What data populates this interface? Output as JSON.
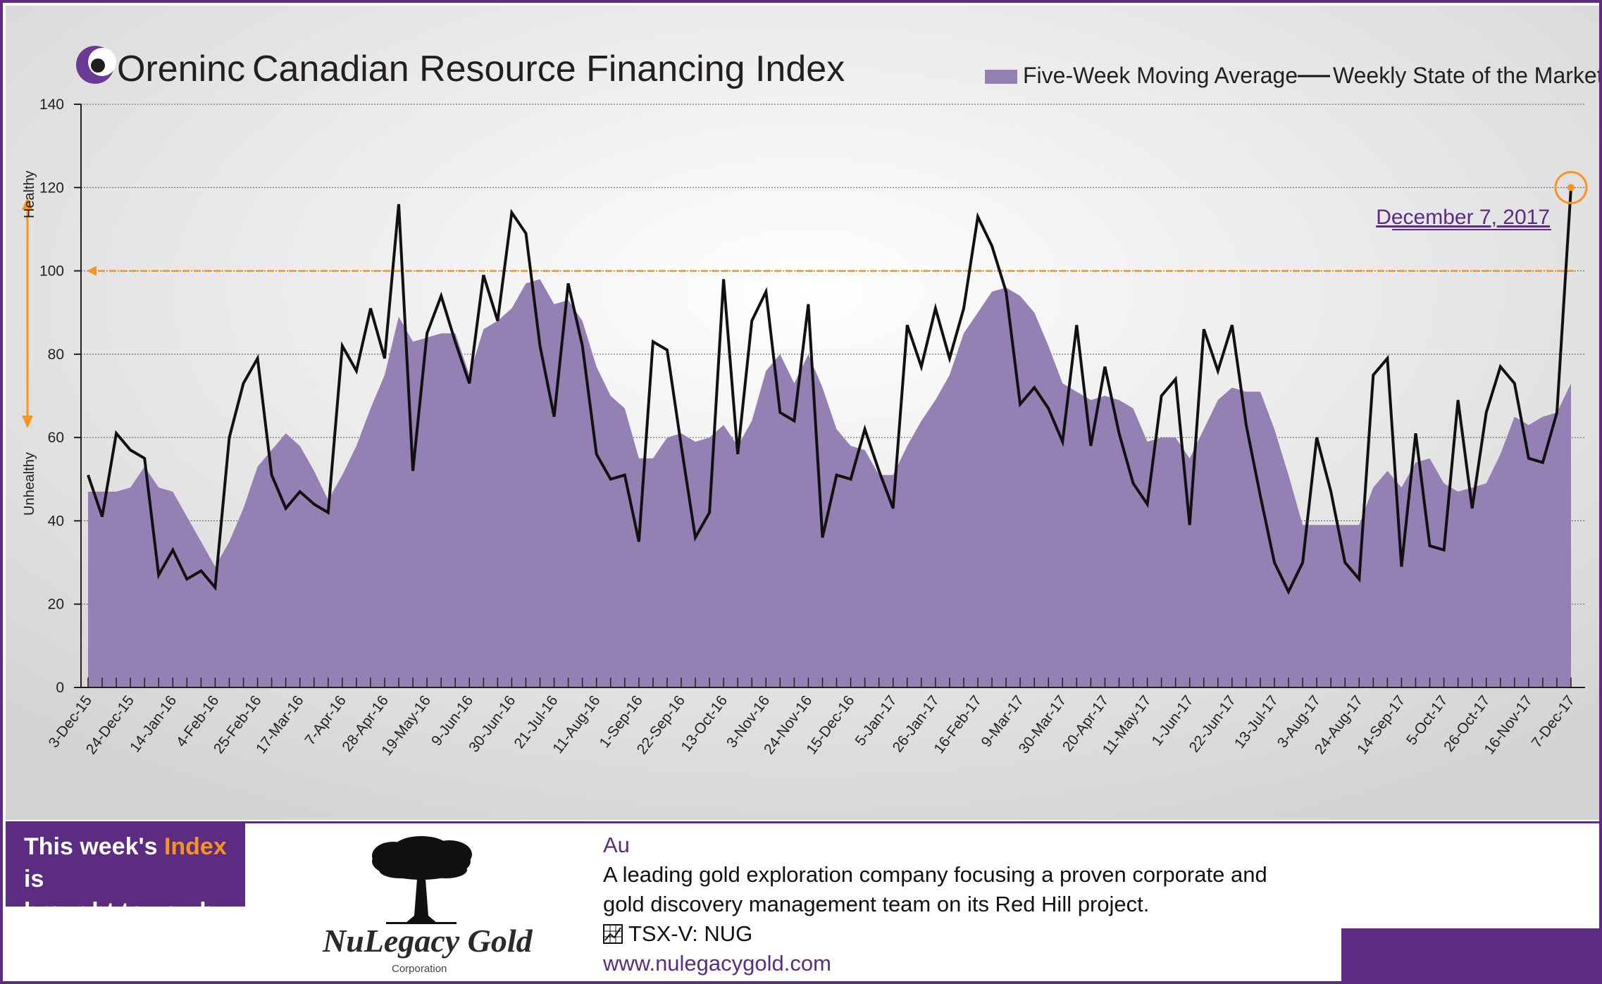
{
  "header": {
    "brand": "Oreninc",
    "title": "Canadian Resource Financing Index",
    "legend": [
      {
        "label": "Five-Week Moving Average",
        "kind": "area"
      },
      {
        "label": "Weekly State of the Market",
        "kind": "line"
      }
    ]
  },
  "annotations": {
    "healthy": "Healthy",
    "unhealthy": "Unhealthy",
    "latest_label": "December 7, 2017",
    "threshold": 100
  },
  "colors": {
    "area": "#9580b3",
    "line": "#111111",
    "accent": "#f7931e",
    "brand_purple": "#5b2c82"
  },
  "chart_data": {
    "type": "area",
    "title": "Canadian Resource Financing Index",
    "xlabel": "",
    "ylabel": "",
    "ylim": [
      0,
      140
    ],
    "yticks": [
      0,
      20,
      40,
      60,
      80,
      100,
      120,
      140
    ],
    "grid": true,
    "legend_position": "top-right",
    "x_tick_labels": [
      "3-Dec-15",
      "24-Dec-15",
      "14-Jan-16",
      "4-Feb-16",
      "25-Feb-16",
      "17-Mar-16",
      "7-Apr-16",
      "28-Apr-16",
      "19-May-16",
      "9-Jun-16",
      "30-Jun-16",
      "21-Jul-16",
      "11-Aug-16",
      "1-Sep-16",
      "22-Sep-16",
      "13-Oct-16",
      "3-Nov-16",
      "24-Nov-16",
      "15-Dec-16",
      "5-Jan-17",
      "26-Jan-17",
      "16-Feb-17",
      "9-Mar-17",
      "30-Mar-17",
      "20-Apr-17",
      "11-May-17",
      "1-Jun-17",
      "22-Jun-17",
      "13-Jul-17",
      "3-Aug-17",
      "24-Aug-17",
      "14-Sep-17",
      "5-Oct-17",
      "26-Oct-17",
      "16-Nov-17",
      "7-Dec-17"
    ],
    "series": [
      {
        "name": "Five-Week Moving Average",
        "values": [
          47,
          47,
          47,
          48,
          53,
          48,
          47,
          41,
          35,
          29,
          35,
          43,
          53,
          57,
          61,
          58,
          52,
          45,
          51,
          58,
          67,
          75,
          89,
          83,
          84,
          85,
          85,
          75,
          86,
          88,
          91,
          97,
          98,
          92,
          93,
          88,
          77,
          70,
          67,
          55,
          55,
          60,
          61,
          59,
          60,
          63,
          58,
          64,
          76,
          80,
          73,
          80,
          72,
          62,
          58,
          57,
          51,
          51,
          58,
          64,
          69,
          75,
          85,
          90,
          95,
          96,
          94,
          90,
          82,
          73,
          71,
          69,
          70,
          69,
          67,
          59,
          60,
          60,
          55,
          62,
          69,
          72,
          71,
          71,
          62,
          51,
          39,
          39,
          39,
          39,
          39,
          48,
          52,
          48,
          54,
          55,
          49,
          47,
          48,
          49,
          56,
          65,
          63,
          65,
          66,
          73
        ]
      },
      {
        "name": "Weekly State of the Market",
        "values": [
          51,
          41,
          61,
          57,
          55,
          27,
          33,
          26,
          28,
          24,
          60,
          73,
          79,
          51,
          43,
          47,
          44,
          42,
          82,
          76,
          91,
          79,
          116,
          52,
          85,
          94,
          83,
          73,
          99,
          88,
          114,
          109,
          82,
          65,
          97,
          82,
          56,
          50,
          51,
          35,
          83,
          81,
          58,
          36,
          42,
          98,
          56,
          88,
          95,
          66,
          64,
          92,
          36,
          51,
          50,
          62,
          52,
          43,
          87,
          77,
          91,
          79,
          91,
          113,
          106,
          95,
          68,
          72,
          67,
          59,
          87,
          58,
          77,
          61,
          49,
          44,
          70,
          74,
          39,
          86,
          76,
          87,
          63,
          46,
          30,
          23,
          30,
          60,
          47,
          30,
          26,
          75,
          79,
          29,
          61,
          34,
          33,
          69,
          43,
          66,
          77,
          73,
          55,
          54,
          66,
          120
        ]
      }
    ]
  },
  "sponsor": {
    "line1_pre": "This week's ",
    "line1_highlight": "Index",
    "line1_post": " is",
    "line2": "brought to you by:",
    "company": "NuLegacy Gold",
    "company_sub": "Corporation",
    "symbol": "Au",
    "desc1": "A leading gold exploration company focusing a proven corporate and",
    "desc2": "gold discovery management team on its Red Hill project.",
    "ticker": "TSX-V:  NUG",
    "url": "www.nulegacygold.com"
  }
}
